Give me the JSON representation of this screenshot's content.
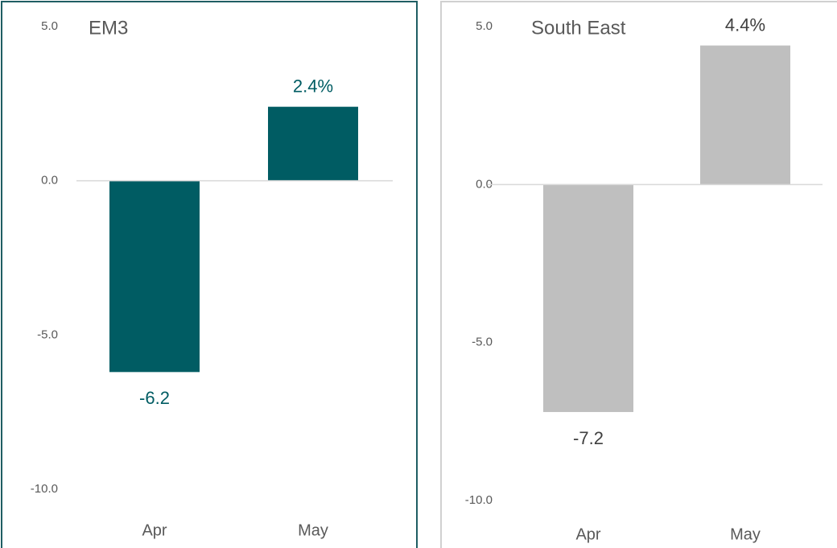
{
  "chart_data": [
    {
      "type": "bar",
      "title": "EM3",
      "categories": [
        "Apr",
        "May"
      ],
      "values": [
        -6.2,
        2.4
      ],
      "value_labels": [
        "-6.2",
        "2.4%"
      ],
      "color": "#005c63",
      "label_color": "#005c63",
      "border_color": "#1f5e63",
      "ylim": [
        -10,
        5
      ],
      "yticks": [
        {
          "value": -10,
          "label": "-10.0"
        },
        {
          "value": -5,
          "label": "-5.0"
        },
        {
          "value": 0,
          "label": "0.0"
        },
        {
          "value": 5,
          "label": "5.0"
        }
      ]
    },
    {
      "type": "bar",
      "title": "South East",
      "categories": [
        "Apr",
        "May"
      ],
      "values": [
        -7.2,
        4.4
      ],
      "value_labels": [
        "-7.2",
        "4.4%"
      ],
      "color": "#bfbfbf",
      "label_color": "#404040",
      "border_color": "#d0d0d0",
      "ylim": [
        -10,
        5
      ],
      "yticks": [
        {
          "value": -10,
          "label": "-10.0"
        },
        {
          "value": -5,
          "label": "-5.0"
        },
        {
          "value": 0,
          "label": "0.0"
        },
        {
          "value": 5,
          "label": "5.0"
        }
      ]
    }
  ]
}
